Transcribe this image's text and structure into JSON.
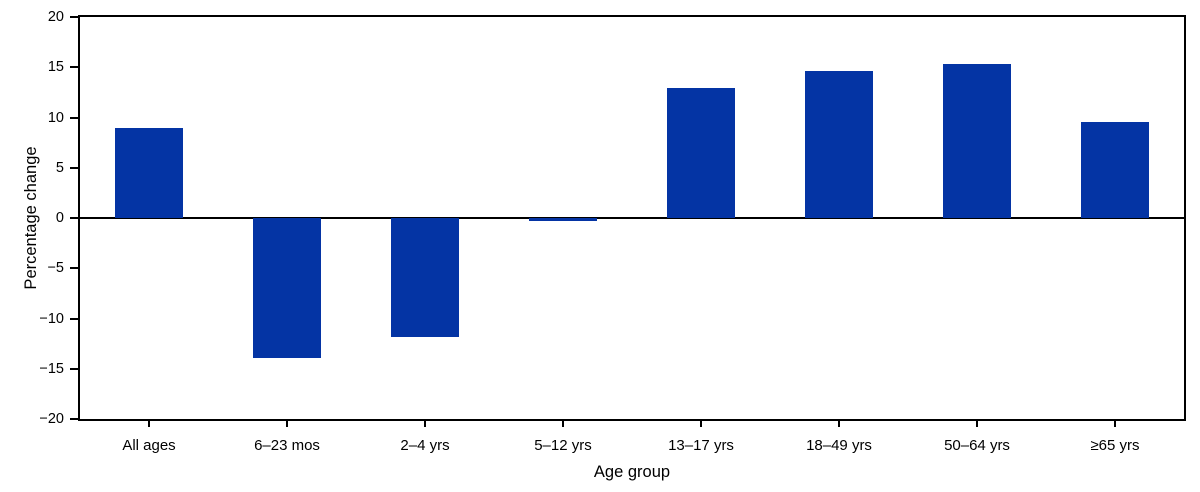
{
  "chart_data": {
    "type": "bar",
    "title": "",
    "xlabel": "Age group",
    "ylabel": "Percentage change",
    "categories": [
      "All ages",
      "6–23 mos",
      "2–4 yrs",
      "5–12 yrs",
      "13–17 yrs",
      "18–49 yrs",
      "50–64 yrs",
      "≥65 yrs"
    ],
    "values": [
      9.0,
      -13.9,
      -11.8,
      -0.3,
      12.9,
      14.6,
      15.3,
      9.6
    ],
    "ylim": [
      -20,
      20
    ],
    "yticks": [
      20,
      15,
      10,
      5,
      0,
      -5,
      -10,
      -15,
      -20
    ],
    "ytick_labels": [
      "20",
      "15",
      "10",
      "5",
      "0",
      "−5",
      "−10",
      "−15",
      "−20"
    ],
    "bar_color": "#0434a4",
    "axis_color": "#000000",
    "background_color": "#ffffff",
    "grid": false,
    "legend": null,
    "bar_width_fraction": 0.49,
    "baseline": 0
  }
}
